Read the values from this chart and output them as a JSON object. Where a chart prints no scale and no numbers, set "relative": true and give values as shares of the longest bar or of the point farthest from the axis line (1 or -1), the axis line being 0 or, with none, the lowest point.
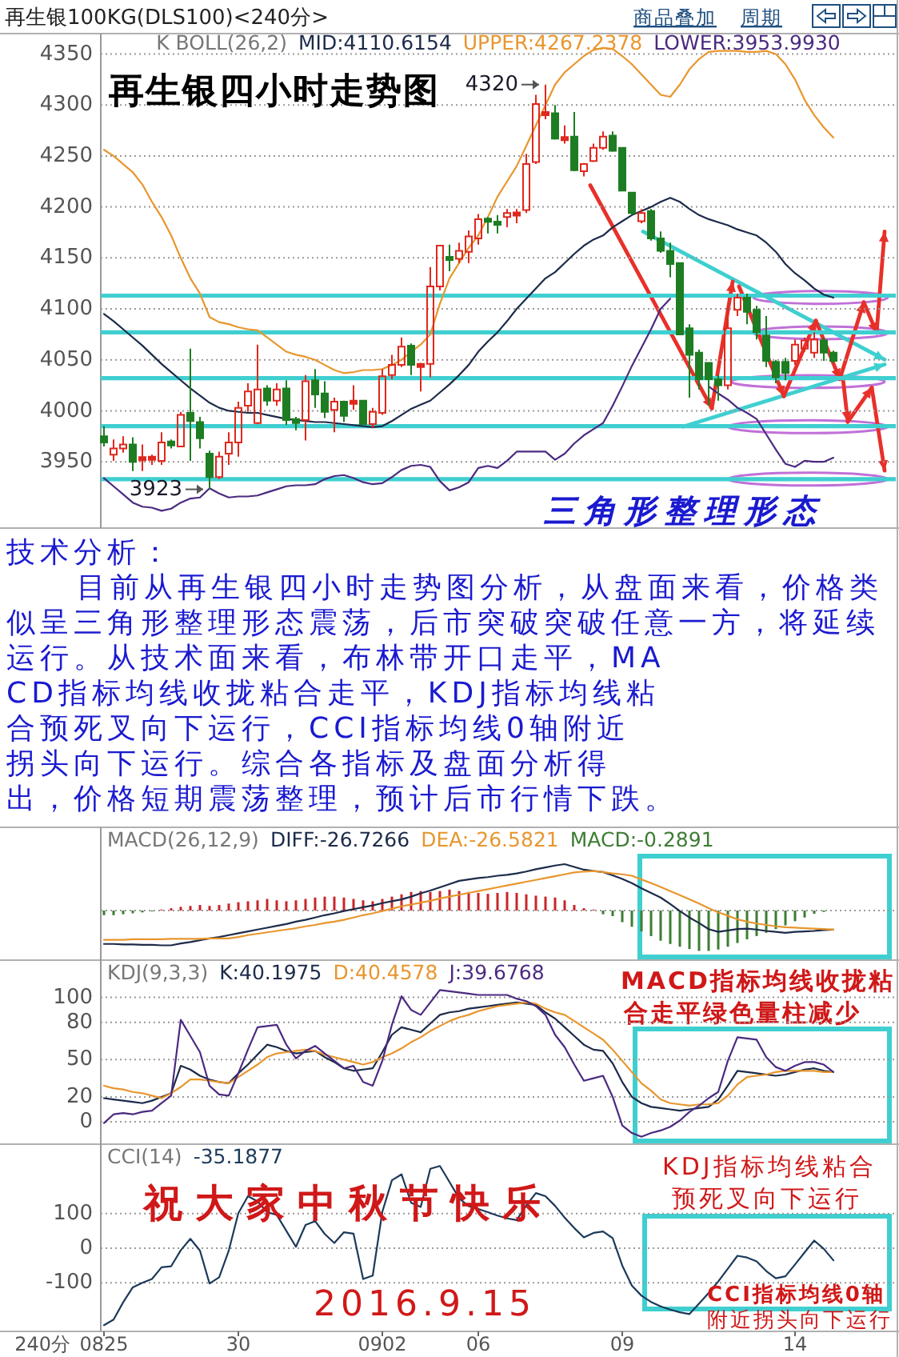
{
  "chart_data": [
    {
      "type": "candlestick",
      "title": "再生银四小时走势图",
      "subtitle": "再生银100KG(DLS100)<240分>",
      "legend_title": "K  BOLL(26,2)",
      "legend": "top",
      "tick_labels": "y",
      "grid": "y",
      "ylim": [
        3885,
        4370
      ],
      "yticks": [
        3950,
        4000,
        4050,
        4100,
        4150,
        4200,
        4250,
        4300,
        4350
      ],
      "categories": [
        null,
        null,
        null,
        null,
        null,
        null,
        null,
        null,
        null,
        null,
        null,
        null,
        null,
        null,
        null,
        null,
        null,
        null,
        null,
        null,
        null,
        null,
        null,
        null,
        null,
        null,
        null,
        null,
        null,
        null,
        null,
        null,
        null,
        null,
        null,
        null,
        null,
        null,
        null,
        null,
        null,
        null,
        null,
        null,
        null,
        null,
        null,
        null,
        null,
        null,
        null,
        null,
        null,
        null,
        null,
        null,
        null,
        null,
        null,
        null,
        null,
        null,
        null,
        null,
        null,
        null,
        null,
        null,
        null,
        null,
        null,
        null,
        null,
        null,
        null,
        null,
        null
      ],
      "ohlc": [
        [
          3975,
          3985,
          3965,
          3969
        ],
        [
          3957,
          3972,
          3951,
          3963
        ],
        [
          3963,
          3975,
          3959,
          3967
        ],
        [
          3967,
          3974,
          3941,
          3950
        ],
        [
          3953,
          3967,
          3941,
          3953
        ],
        [
          3953,
          3957,
          3947,
          3954
        ],
        [
          3951,
          3979,
          3947,
          3969
        ],
        [
          3970,
          3972,
          3963,
          3966
        ],
        [
          3965,
          3999,
          3965,
          3996
        ],
        [
          3998,
          4061,
          3951,
          3990
        ],
        [
          3989,
          3994,
          3963,
          3973
        ],
        [
          3958,
          3961,
          3923,
          3935
        ],
        [
          3935,
          3960,
          3933,
          3955
        ],
        [
          3958,
          3979,
          3947,
          3969
        ],
        [
          3969,
          4009,
          3955,
          4003
        ],
        [
          4005,
          4027,
          3999,
          4019
        ],
        [
          3988,
          4065,
          3987,
          4021
        ],
        [
          4022,
          4025,
          4005,
          4010
        ],
        [
          4010,
          4027,
          4005,
          4021
        ],
        [
          4022,
          4030,
          3986,
          3991
        ],
        [
          3992,
          3994,
          3981,
          3988
        ],
        [
          3991,
          4035,
          3971,
          4029
        ],
        [
          4030,
          4041,
          4003,
          4016
        ],
        [
          4017,
          4029,
          3993,
          3999
        ],
        [
          4001,
          4013,
          3979,
          4009
        ],
        [
          4009,
          4010,
          3989,
          3995
        ],
        [
          4008,
          4025,
          4001,
          4009
        ],
        [
          4010,
          4010,
          3987,
          3987
        ],
        [
          3987,
          4003,
          3983,
          3999
        ],
        [
          3998,
          4041,
          3996,
          4034
        ],
        [
          4035,
          4055,
          4031,
          4045
        ],
        [
          4045,
          4072,
          4043,
          4063
        ],
        [
          4064,
          4066,
          4035,
          4045
        ],
        [
          4043,
          4047,
          4019,
          4046
        ],
        [
          4046,
          4141,
          4033,
          4122
        ],
        [
          4122,
          4162,
          4118,
          4162
        ],
        [
          4150,
          4163,
          4137,
          4149
        ],
        [
          4149,
          4165,
          4145,
          4157
        ],
        [
          4156,
          4177,
          4145,
          4171
        ],
        [
          4169,
          4193,
          4163,
          4188
        ],
        [
          4188,
          4190,
          4174,
          4186
        ],
        [
          4185,
          4192,
          4174,
          4183
        ],
        [
          4190,
          4198,
          4180,
          4194
        ],
        [
          4193,
          4198,
          4184,
          4193
        ],
        [
          4197,
          4252,
          4194,
          4242
        ],
        [
          4244,
          4310,
          4242,
          4301
        ],
        [
          4291,
          4320,
          4286,
          4292
        ],
        [
          4292,
          4300,
          4266,
          4267
        ],
        [
          4267,
          4280,
          4262,
          4267
        ],
        [
          4269,
          4293,
          4235,
          4236
        ],
        [
          4235,
          4243,
          4230,
          4242
        ],
        [
          4245,
          4262,
          4244,
          4258
        ],
        [
          4258,
          4274,
          4256,
          4269
        ],
        [
          4270,
          4274,
          4254,
          4255
        ],
        [
          4258,
          4258,
          4216,
          4216
        ],
        [
          4214,
          4214,
          4192,
          4194
        ],
        [
          4186,
          4198,
          4184,
          4194
        ],
        [
          4196,
          4198,
          4167,
          4169
        ],
        [
          4169,
          4176,
          4155,
          4157
        ],
        [
          4157,
          4165,
          4131,
          4144
        ],
        [
          4145,
          4145,
          4075,
          4075
        ],
        [
          4081,
          4085,
          4013,
          4055
        ],
        [
          4057,
          4060,
          4021,
          4031
        ],
        [
          4047,
          4047,
          4005,
          4031
        ],
        [
          4031,
          4035,
          4010,
          4025
        ],
        [
          4025,
          4101,
          4021,
          4081
        ],
        [
          4099,
          4115,
          4093,
          4111
        ],
        [
          4111,
          4115,
          4085,
          4097
        ],
        [
          4099,
          4103,
          4070,
          4077
        ],
        [
          4074,
          4093,
          4043,
          4049
        ],
        [
          4048,
          4050,
          4027,
          4033
        ],
        [
          4048,
          4052,
          4030,
          4037
        ],
        [
          4049,
          4070,
          4045,
          4065
        ],
        [
          4061,
          4072,
          4058,
          4069
        ],
        [
          4057,
          4077,
          4052,
          4070
        ],
        [
          4069,
          4072,
          4049,
          4057
        ],
        [
          4057,
          4059,
          4047,
          4049
        ]
      ],
      "colors": [
        "#1e7d22",
        "#e0281e",
        "#e0281e",
        "#1e7d22",
        "#e0281e",
        "#e0281e",
        "#e0281e",
        "#1e7d22",
        "#e0281e",
        "#1e7d22",
        "#1e7d22",
        "#1e7d22",
        "#e0281e",
        "#e0281e",
        "#e0281e",
        "#e0281e",
        "#e0281e",
        "#1e7d22",
        "#e0281e",
        "#1e7d22",
        "#1e7d22",
        "#e0281e",
        "#1e7d22",
        "#1e7d22",
        "#e0281e",
        "#1e7d22",
        "#e0281e",
        "#1e7d22",
        "#e0281e",
        "#e0281e",
        "#e0281e",
        "#e0281e",
        "#1e7d22",
        "#e0281e",
        "#e0281e",
        "#e0281e",
        "#1e7d22",
        "#e0281e",
        "#e0281e",
        "#e0281e",
        "#1e7d22",
        "#1e7d22",
        "#e0281e",
        "#e0281e",
        "#e0281e",
        "#e0281e",
        "#e0281e",
        "#1e7d22",
        "#e0281e",
        "#1e7d22",
        "#e0281e",
        "#e0281e",
        "#e0281e",
        "#1e7d22",
        "#1e7d22",
        "#1e7d22",
        "#e0281e",
        "#1e7d22",
        "#1e7d22",
        "#1e7d22",
        "#1e7d22",
        "#1e7d22",
        "#1e7d22",
        "#1e7d22",
        "#1e7d22",
        "#e0281e",
        "#e0281e",
        "#1e7d22",
        "#1e7d22",
        "#1e7d22",
        "#1e7d22",
        "#1e7d22",
        "#e0281e",
        "#e0281e",
        "#e0281e",
        "#1e7d22",
        "#1e7d22"
      ],
      "series": [
        {
          "type": "line",
          "name": "MID:4110.6154",
          "color": "#1c2b4a",
          "values": [
            4095,
            4088,
            4080,
            4072,
            4064,
            4055,
            4046,
            4038,
            4030,
            4022,
            4015,
            4008,
            4003,
            4000,
            3999,
            3998,
            3998,
            3996,
            3994,
            3992,
            3991,
            3990,
            3989,
            3989,
            3988,
            3987,
            3986,
            3985,
            3984,
            3985,
            3990,
            3996,
            4002,
            4006,
            4010,
            4018,
            4026,
            4035,
            4045,
            4058,
            4068,
            4077,
            4088,
            4100,
            4110,
            4120,
            4130,
            4136,
            4145,
            4154,
            4162,
            4168,
            4172,
            4180,
            4186,
            4192,
            4196,
            4200,
            4205,
            4209,
            4205,
            4198,
            4192,
            4188,
            4185,
            4182,
            4178,
            4175,
            4172,
            4165,
            4156,
            4144,
            4135,
            4128,
            4120,
            4114,
            4111
          ]
        },
        {
          "type": "line",
          "name": "UPPER:4267.2378",
          "color": "#e8962e",
          "values": [
            4256,
            4250,
            4242,
            4234,
            4222,
            4205,
            4190,
            4172,
            4150,
            4130,
            4115,
            4092,
            4087,
            4085,
            4082,
            4080,
            4079,
            4072,
            4065,
            4058,
            4055,
            4053,
            4050,
            4045,
            4040,
            4037,
            4038,
            4040,
            4040,
            4041,
            4045,
            4050,
            4058,
            4065,
            4075,
            4105,
            4130,
            4145,
            4160,
            4172,
            4190,
            4210,
            4225,
            4240,
            4260,
            4280,
            4300,
            4320,
            4332,
            4340,
            4348,
            4354,
            4356,
            4355,
            4348,
            4340,
            4330,
            4320,
            4310,
            4308,
            4320,
            4335,
            4345,
            4352,
            4353,
            4353,
            4353,
            4352,
            4352,
            4353,
            4350,
            4340,
            4325,
            4305,
            4290,
            4278,
            4268
          ]
        },
        {
          "type": "line",
          "name": "LOWER:3953.9930",
          "color": "#4b2a80",
          "values": [
            3934,
            3926,
            3918,
            3910,
            3906,
            3905,
            3902,
            3904,
            3910,
            3914,
            3915,
            3924,
            3919,
            3915,
            3916,
            3916,
            3917,
            3920,
            3923,
            3926,
            3927,
            3927,
            3928,
            3933,
            3936,
            3937,
            3934,
            3930,
            3928,
            3929,
            3935,
            3942,
            3946,
            3947,
            3945,
            3931,
            3922,
            3925,
            3930,
            3944,
            3946,
            3944,
            3951,
            3960,
            3960,
            3960,
            3960,
            3952,
            3958,
            3968,
            3976,
            3982,
            3988,
            4005,
            4024,
            4044,
            4062,
            4080,
            4100,
            4110,
            null,
            null,
            null,
            4024,
            4017,
            4011,
            4003,
            3998,
            3992,
            3977,
            3962,
            3948,
            3945,
            3951,
            3950,
            3950,
            3954
          ]
        }
      ],
      "ref_lines": [
        {
          "axis": "y",
          "value": 4113,
          "color": "#3fcfd0"
        },
        {
          "axis": "y",
          "value": 4077,
          "color": "#3fcfd0"
        },
        {
          "axis": "y",
          "value": 4032,
          "color": "#3fcfd0"
        },
        {
          "axis": "y",
          "value": 3985,
          "color": "#3fcfd0"
        },
        {
          "axis": "y",
          "value": 3933,
          "color": "#3fcfd0"
        }
      ],
      "annotations": [
        "4320",
        "3923",
        "三角形整理形态",
        "技术分析：",
        "目前从再生银四小时走势图分析，从盘面来看，价格类",
        "似呈三角形整理形态震荡，后市突破突破任意一方，将延续",
        "运行。从技术面来看，布林带开口走平，MA",
        "CD指标均线收拢粘合走平，KDJ指标均线粘",
        "合预死叉向下运行，CCI指标均线0轴附近",
        "拐头向下运行。综合各指标及盘面分析得",
        "出，价格短期震荡整理，预计后市行情下跌。",
        "商品叠加",
        "周期"
      ]
    },
    {
      "type": "bar",
      "relative": true,
      "legend_title": "MACD(26,12,9)",
      "legend": "top left",
      "tick_labels": false,
      "categories": [
        null,
        null,
        null,
        null,
        null,
        null,
        null,
        null,
        null,
        null,
        null,
        null,
        null,
        null,
        null,
        null,
        null,
        null,
        null,
        null,
        null,
        null,
        null,
        null,
        null,
        null,
        null,
        null,
        null,
        null,
        null,
        null,
        null,
        null,
        null,
        null,
        null,
        null,
        null,
        null,
        null,
        null,
        null,
        null,
        null,
        null,
        null,
        null,
        null,
        null,
        null,
        null,
        null,
        null,
        null,
        null,
        null,
        null,
        null,
        null,
        null,
        null,
        null,
        null,
        null,
        null,
        null,
        null,
        null,
        null,
        null,
        null,
        null,
        null,
        null,
        null,
        null
      ],
      "ref_lines": [
        {
          "axis": "y",
          "value": 0,
          "color": "#9a9a9a",
          "line_style": "dotted"
        }
      ],
      "series": [
        {
          "type": "line",
          "name": "DIFF:-26.7266",
          "color": "#1c2b4a",
          "values": [
            -0.72,
            -0.72,
            -0.73,
            -0.73,
            -0.74,
            -0.74,
            -0.75,
            -0.75,
            -0.71,
            -0.68,
            -0.64,
            -0.6,
            -0.57,
            -0.53,
            -0.49,
            -0.45,
            -0.41,
            -0.37,
            -0.33,
            -0.29,
            -0.24,
            -0.2,
            -0.15,
            -0.1,
            -0.06,
            -0.01,
            0.03,
            0.07,
            0.11,
            0.16,
            0.2,
            0.24,
            0.3,
            0.37,
            0.43,
            0.5,
            0.57,
            0.64,
            0.67,
            0.7,
            0.72,
            0.75,
            0.77,
            0.8,
            0.84,
            0.89,
            0.93,
            0.97,
            1,
            0.94,
            0.88,
            0.85,
            0.83,
            0.76,
            0.68,
            0.59,
            0.48,
            0.38,
            0.28,
            0.14,
            -0.01,
            -0.15,
            -0.27,
            -0.4,
            -0.46,
            -0.43,
            -0.4,
            -0.39,
            -0.41,
            -0.44,
            -0.46,
            -0.48,
            -0.46,
            -0.45,
            -0.44,
            -0.42,
            -0.41
          ]
        },
        {
          "type": "line",
          "name": "DEA:-26.5821",
          "color": "#e8962e",
          "values": [
            -0.63,
            -0.63,
            -0.63,
            -0.62,
            -0.62,
            -0.62,
            -0.62,
            -0.61,
            -0.61,
            -0.61,
            -0.61,
            -0.6,
            -0.6,
            -0.6,
            -0.57,
            -0.53,
            -0.5,
            -0.47,
            -0.44,
            -0.41,
            -0.38,
            -0.34,
            -0.31,
            -0.27,
            -0.24,
            -0.2,
            -0.15,
            -0.1,
            -0.06,
            -0.01,
            0.04,
            0.09,
            0.13,
            0.17,
            0.21,
            0.26,
            0.3,
            0.34,
            0.38,
            0.42,
            0.46,
            0.5,
            0.54,
            0.58,
            0.62,
            0.66,
            0.7,
            0.74,
            0.78,
            0.82,
            0.84,
            0.85,
            0.83,
            0.8,
            0.78,
            0.75,
            0.67,
            0.59,
            0.51,
            0.42,
            0.33,
            0.24,
            0.15,
            0.05,
            -0.04,
            -0.11,
            -0.19,
            -0.24,
            -0.28,
            -0.31,
            -0.34,
            -0.36,
            -0.37,
            -0.38,
            -0.39,
            -0.4,
            -0.41
          ]
        },
        {
          "type": "bar",
          "name": "MACD:-0.2891",
          "values": [
            -0.1,
            -0.1,
            -0.08,
            -0.06,
            -0.04,
            -0.02,
            0.02,
            0.05,
            0.08,
            0.1,
            0.12,
            0.1,
            0.12,
            0.15,
            0.18,
            0.2,
            0.22,
            0.25,
            0.22,
            0.2,
            0.22,
            0.25,
            0.28,
            0.3,
            0.3,
            0.28,
            0.25,
            0.22,
            0.2,
            0.25,
            0.3,
            0.35,
            0.4,
            0.42,
            0.4,
            0.42,
            0.45,
            0.42,
            0.4,
            0.38,
            0.36,
            0.38,
            0.4,
            0.38,
            0.35,
            0.32,
            0.3,
            0.28,
            0.22,
            0.12,
            0.05,
            0.02,
            -0.08,
            -0.12,
            -0.25,
            -0.35,
            -0.45,
            -0.55,
            -0.65,
            -0.72,
            -0.78,
            -0.83,
            -0.87,
            -0.87,
            -0.84,
            -0.78,
            -0.7,
            -0.62,
            -0.55,
            -0.48,
            -0.4,
            -0.32,
            -0.23,
            -0.15,
            -0.07,
            -0.03,
            null
          ],
          "colors": [
            "#3c7d32",
            "#3c7d32",
            "#3c7d32",
            "#3c7d32",
            "#3c7d32",
            "#3c7d32",
            "#c8262a",
            "#c8262a",
            "#c8262a",
            "#c8262a",
            "#c8262a",
            "#c8262a",
            "#c8262a",
            "#c8262a",
            "#c8262a",
            "#c8262a",
            "#c8262a",
            "#c8262a",
            "#c8262a",
            "#c8262a",
            "#c8262a",
            "#c8262a",
            "#c8262a",
            "#c8262a",
            "#c8262a",
            "#c8262a",
            "#c8262a",
            "#c8262a",
            "#c8262a",
            "#c8262a",
            "#c8262a",
            "#c8262a",
            "#c8262a",
            "#c8262a",
            "#c8262a",
            "#c8262a",
            "#c8262a",
            "#c8262a",
            "#c8262a",
            "#c8262a",
            "#c8262a",
            "#c8262a",
            "#c8262a",
            "#c8262a",
            "#c8262a",
            "#c8262a",
            "#c8262a",
            "#c8262a",
            "#c8262a",
            "#c8262a",
            "#c8262a",
            "#c8262a",
            "#3c7d32",
            "#3c7d32",
            "#3c7d32",
            "#3c7d32",
            "#3c7d32",
            "#3c7d32",
            "#3c7d32",
            "#3c7d32",
            "#3c7d32",
            "#3c7d32",
            "#3c7d32",
            "#3c7d32",
            "#3c7d32",
            "#3c7d32",
            "#3c7d32",
            "#3c7d32",
            "#3c7d32",
            "#3c7d32",
            "#3c7d32",
            "#3c7d32",
            "#3c7d32",
            "#3c7d32",
            "#3c7d32",
            "#3c7d32",
            "#3c7d32"
          ]
        }
      ],
      "annotations": [
        "MACD指标均线收拢粘",
        "合走平绿色量柱减少"
      ]
    },
    {
      "type": "line",
      "legend_title": "KDJ(9,3,3)",
      "legend": "top left",
      "tick_labels": "y",
      "grid": "y",
      "ylim": [
        -18,
        130
      ],
      "yticks": [
        0,
        20,
        50,
        80,
        100
      ],
      "categories": [
        null,
        null,
        null,
        null,
        null,
        null,
        null,
        null,
        null,
        null,
        null,
        null,
        null,
        null,
        null,
        null,
        null,
        null,
        null,
        null,
        null,
        null,
        null,
        null,
        null,
        null,
        null,
        null,
        null,
        null,
        null,
        null,
        null,
        null,
        null,
        null,
        null,
        null,
        null,
        null,
        null,
        null,
        null,
        null,
        null,
        null,
        null,
        null,
        null,
        null,
        null,
        null,
        null,
        null,
        null,
        null,
        null,
        null,
        null,
        null,
        null,
        null,
        null,
        null,
        null,
        null,
        null,
        null,
        null,
        null,
        null,
        null,
        null,
        null,
        null,
        null,
        null
      ],
      "series": [
        {
          "name": "K:40.1975",
          "color": "#1c2b4a",
          "values": [
            19,
            18,
            17,
            16,
            15,
            17,
            20,
            23,
            45,
            42,
            37,
            34,
            32,
            31,
            39,
            46,
            54,
            62,
            60,
            57,
            55,
            56,
            57,
            52,
            48,
            43,
            41,
            42,
            43,
            56,
            70,
            76,
            74,
            72,
            79,
            86,
            88,
            89,
            91,
            92,
            93,
            94,
            95,
            96,
            95,
            94,
            88,
            83,
            76,
            69,
            62,
            58,
            57,
            47,
            32,
            20,
            15,
            12,
            11,
            10,
            9,
            10,
            11,
            12,
            18,
            29,
            41,
            40,
            39,
            38,
            37,
            38,
            40,
            42,
            43,
            41,
            40
          ]
        },
        {
          "name": "D:40.4578",
          "color": "#e8962e",
          "values": [
            29,
            27,
            26,
            24,
            23,
            21,
            19,
            23,
            28,
            34,
            34,
            33,
            32,
            31,
            36,
            41,
            46,
            52,
            55,
            56,
            57,
            58,
            57,
            54,
            52,
            50,
            48,
            46,
            48,
            52,
            55,
            59,
            64,
            68,
            73,
            77,
            81,
            84,
            86,
            89,
            91,
            93,
            94,
            95,
            96,
            95,
            91,
            88,
            86,
            81,
            76,
            71,
            66,
            58,
            49,
            40,
            31,
            25,
            18,
            15,
            14,
            13,
            14,
            14,
            15,
            21,
            30,
            36,
            37,
            38,
            40,
            41,
            41,
            41,
            41,
            40,
            40
          ]
        },
        {
          "name": "J:39.6768",
          "color": "#4b2a80",
          "values": [
            -1,
            6,
            7,
            6,
            8,
            9,
            15,
            21,
            82,
            69,
            56,
            29,
            22,
            21,
            39,
            58,
            76,
            77,
            78,
            62,
            51,
            57,
            61,
            55,
            49,
            43,
            45,
            32,
            29,
            49,
            78,
            101,
            90,
            86,
            96,
            106,
            105,
            104,
            103,
            102,
            102,
            102,
            102,
            99,
            97,
            93,
            86,
            70,
            60,
            46,
            33,
            35,
            37,
            20,
            -3,
            -9,
            -12,
            -9,
            -7,
            -4,
            1,
            8,
            13,
            19,
            24,
            49,
            68,
            67,
            66,
            52,
            44,
            41,
            45,
            48,
            48,
            46,
            40
          ]
        }
      ],
      "annotations": [
        "KDJ指标均线粘合",
        "预死叉向下运行"
      ]
    },
    {
      "type": "line",
      "legend_title": "CCI(14)",
      "legend": "top left",
      "grid": "y",
      "xlabel": "240分",
      "ylim": [
        -240,
        300
      ],
      "yticks": [
        -100,
        0,
        100
      ],
      "categories": [
        "0825",
        null,
        null,
        null,
        null,
        null,
        null,
        null,
        null,
        null,
        null,
        null,
        null,
        null,
        "30",
        null,
        null,
        null,
        null,
        null,
        null,
        null,
        null,
        null,
        null,
        null,
        null,
        null,
        null,
        "0902",
        null,
        null,
        null,
        null,
        null,
        null,
        null,
        null,
        null,
        "06",
        null,
        null,
        null,
        null,
        null,
        null,
        null,
        null,
        null,
        null,
        null,
        null,
        null,
        null,
        "09",
        null,
        null,
        null,
        null,
        null,
        null,
        null,
        null,
        null,
        null,
        null,
        null,
        null,
        null,
        null,
        null,
        null,
        "14",
        null,
        null,
        null,
        null
      ],
      "series": [
        {
          "name": "-35.1877",
          "color": "#1c3a5a",
          "values": [
            -222,
            -206,
            -156,
            -113,
            -100,
            -89,
            -55,
            -52,
            -6,
            27,
            -7,
            -102,
            -84,
            -7,
            101,
            150,
            135,
            104,
            96,
            50,
            4,
            67,
            78,
            41,
            15,
            46,
            42,
            -89,
            -79,
            105,
            196,
            213,
            131,
            119,
            229,
            237,
            191,
            144,
            121,
            113,
            104,
            94,
            86,
            81,
            123,
            159,
            150,
            122,
            88,
            58,
            31,
            44,
            48,
            29,
            -50,
            -108,
            -137,
            -155,
            -168,
            -177,
            -185,
            -190,
            -160,
            -129,
            -96,
            -59,
            -22,
            -27,
            -38,
            -66,
            -87,
            -81,
            -47,
            -12,
            22,
            -2,
            -35
          ]
        }
      ],
      "annotations": [
        "祝大家中秋节快乐",
        "2016.9.15",
        "CCI指标均线0轴",
        "附近拐头向下运行"
      ]
    }
  ]
}
